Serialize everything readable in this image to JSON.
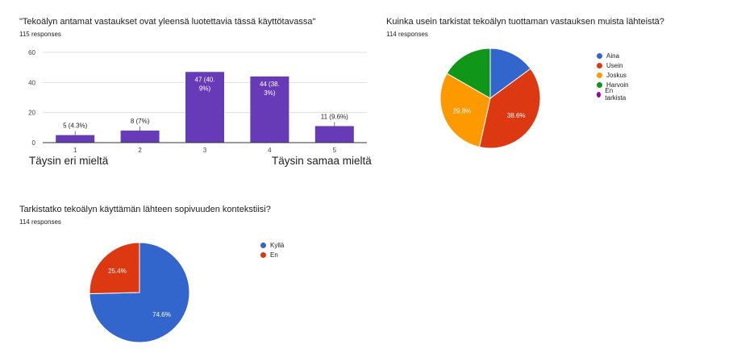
{
  "colors": {
    "bar": "#673ab7",
    "blue": "#3366cc",
    "red": "#dc3912",
    "orange": "#ff9900",
    "green": "#109618",
    "purple": "#990099"
  },
  "q1": {
    "title": "\"Tekoälyn antamat vastaukset ovat yleensä luotettavia tässä käyttötavassa\"",
    "responses": "115 responses",
    "low_label": "Täysin eri mieltä",
    "high_label": "Täysin samaa mieltä"
  },
  "q2": {
    "title": "Kuinka usein tarkistat tekoälyn tuottaman vastauksen muista lähteistä?",
    "responses": "114 responses"
  },
  "q3": {
    "title": "Tarkistatko tekoälyn käyttämän lähteen sopivuuden kontekstiisi?",
    "responses": "114 responses"
  },
  "chart_data": [
    {
      "type": "bar",
      "categories": [
        "1",
        "2",
        "3",
        "4",
        "5"
      ],
      "values": [
        5,
        8,
        47,
        44,
        11
      ],
      "data_labels": [
        [
          "5 (4.3%)"
        ],
        [
          "8 (7%)"
        ],
        [
          "47 (40.",
          "9%)"
        ],
        [
          "44 (38.",
          "3%)"
        ],
        [
          "11 (9.6%)"
        ]
      ],
      "ylim": [
        0,
        60
      ],
      "yticks": [
        "0",
        "20",
        "40",
        "60"
      ],
      "grid": true
    },
    {
      "type": "pie",
      "legend_position": "right",
      "slices": [
        {
          "label": "Aina",
          "value": 14.9,
          "color": "#3366cc",
          "text": ""
        },
        {
          "label": "Usein",
          "value": 38.6,
          "color": "#dc3912",
          "text": "38.6%"
        },
        {
          "label": "Joskus",
          "value": 29.8,
          "color": "#ff9900",
          "text": "29.8%"
        },
        {
          "label": "Harvoin",
          "value": 16.7,
          "color": "#109618",
          "text": ""
        },
        {
          "label": "En tarkista",
          "value": 0,
          "color": "#990099",
          "text": ""
        }
      ]
    },
    {
      "type": "pie",
      "legend_position": "right",
      "slices": [
        {
          "label": "Kyllä",
          "value": 74.6,
          "color": "#3366cc",
          "text": "74.6%"
        },
        {
          "label": "En",
          "value": 25.4,
          "color": "#dc3912",
          "text": "25.4%"
        }
      ]
    }
  ]
}
